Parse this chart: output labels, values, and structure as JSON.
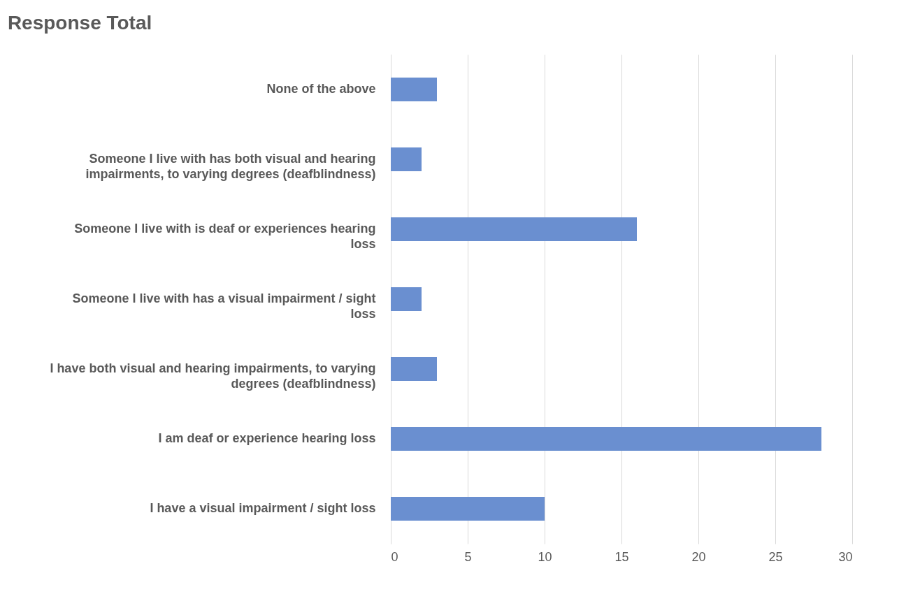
{
  "chart_data": {
    "type": "bar",
    "title": "Response Total",
    "orientation": "horizontal",
    "categories": [
      "None of the above",
      "Someone I live with has both visual and hearing impairments, to varying degrees (deafblindness)",
      "Someone I live with is deaf or experiences hearing loss",
      "Someone I live with has a visual impairment / sight loss",
      "I have both visual and hearing impairments, to varying degrees (deafblindness)",
      "I am deaf or experience hearing loss",
      "I have a visual impairment / sight loss"
    ],
    "values": [
      3,
      2,
      16,
      2,
      3,
      28,
      10
    ],
    "color": "#6a8fd0",
    "xlim": [
      0,
      30
    ],
    "xticks": [
      0,
      5,
      10,
      15,
      20,
      25,
      30
    ],
    "grid": "x"
  }
}
